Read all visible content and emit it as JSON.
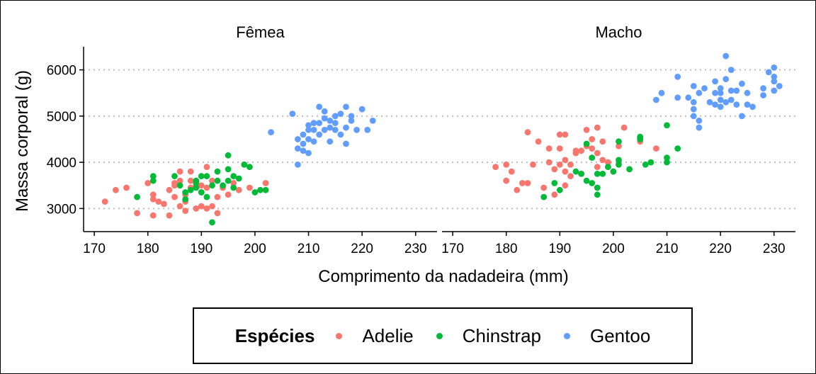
{
  "chart_data": {
    "type": "scatter",
    "xlabel": "Comprimento da nadadeira (mm)",
    "ylabel": "Massa corporal (g)",
    "xlim": [
      168,
      234
    ],
    "ylim": [
      2500,
      6500
    ],
    "xticks": [
      170,
      180,
      190,
      200,
      210,
      220,
      230
    ],
    "yticks": [
      3000,
      4000,
      5000,
      6000
    ],
    "grid": "horizontal dotted",
    "legend": {
      "title": "Espécies",
      "position": "bottom",
      "entries": [
        {
          "name": "Adelie",
          "color": "#F8766D"
        },
        {
          "name": "Chinstrap",
          "color": "#00BA38"
        },
        {
          "name": "Gentoo",
          "color": "#619CFF"
        }
      ]
    },
    "panels": [
      {
        "label": "Fêmea",
        "series": [
          {
            "name": "Adelie",
            "color": "#F8766D",
            "points": [
              [
                172,
                3150
              ],
              [
                174,
                3400
              ],
              [
                176,
                3450
              ],
              [
                178,
                2900
              ],
              [
                180,
                3550
              ],
              [
                181,
                2850
              ],
              [
                181,
                3300
              ],
              [
                181,
                3200
              ],
              [
                182,
                3150
              ],
              [
                183,
                3100
              ],
              [
                184,
                2850
              ],
              [
                184,
                3400
              ],
              [
                185,
                3250
              ],
              [
                185,
                3500
              ],
              [
                185,
                3550
              ],
              [
                186,
                3050
              ],
              [
                186,
                3600
              ],
              [
                186,
                3800
              ],
              [
                187,
                2950
              ],
              [
                187,
                3300
              ],
              [
                187,
                3150
              ],
              [
                188,
                3450
              ],
              [
                188,
                3600
              ],
              [
                188,
                3800
              ],
              [
                189,
                3000
              ],
              [
                189,
                3500
              ],
              [
                190,
                3050
              ],
              [
                190,
                3350
              ],
              [
                190,
                3500
              ],
              [
                191,
                3000
              ],
              [
                191,
                3450
              ],
              [
                191,
                3900
              ],
              [
                192,
                3050
              ],
              [
                192,
                3600
              ],
              [
                193,
                2900
              ],
              [
                193,
                3250
              ],
              [
                194,
                3450
              ],
              [
                195,
                3300
              ],
              [
                196,
                3550
              ],
              [
                197,
                3400
              ],
              [
                199,
                3450
              ],
              [
                202,
                3550
              ]
            ]
          },
          {
            "name": "Chinstrap",
            "color": "#00BA38",
            "points": [
              [
                178,
                3250
              ],
              [
                181,
                3700
              ],
              [
                181,
                3600
              ],
              [
                185,
                3700
              ],
              [
                186,
                3500
              ],
              [
                187,
                3350
              ],
              [
                187,
                3200
              ],
              [
                188,
                3400
              ],
              [
                189,
                3550
              ],
              [
                189,
                3600
              ],
              [
                189,
                3450
              ],
              [
                190,
                3700
              ],
              [
                190,
                3350
              ],
              [
                191,
                3700
              ],
              [
                191,
                3250
              ],
              [
                192,
                2700
              ],
              [
                192,
                3500
              ],
              [
                193,
                3800
              ],
              [
                193,
                3600
              ],
              [
                194,
                3500
              ],
              [
                195,
                3850
              ],
              [
                195,
                4150
              ],
              [
                195,
                3600
              ],
              [
                196,
                3700
              ],
              [
                196,
                3450
              ],
              [
                197,
                3650
              ],
              [
                198,
                3950
              ],
              [
                199,
                3900
              ],
              [
                200,
                3350
              ],
              [
                201,
                3400
              ],
              [
                202,
                3400
              ]
            ]
          },
          {
            "name": "Gentoo",
            "color": "#619CFF",
            "points": [
              [
                203,
                4650
              ],
              [
                207,
                5050
              ],
              [
                208,
                4500
              ],
              [
                208,
                4300
              ],
              [
                208,
                3950
              ],
              [
                209,
                4600
              ],
              [
                209,
                4250
              ],
              [
                209,
                4400
              ],
              [
                210,
                4700
              ],
              [
                210,
                4800
              ],
              [
                210,
                4500
              ],
              [
                210,
                4200
              ],
              [
                211,
                4850
              ],
              [
                211,
                4700
              ],
              [
                211,
                4450
              ],
              [
                212,
                5200
              ],
              [
                212,
                4600
              ],
              [
                212,
                4850
              ],
              [
                213,
                4700
              ],
              [
                213,
                4950
              ],
              [
                213,
                5100
              ],
              [
                214,
                4750
              ],
              [
                214,
                4900
              ],
              [
                214,
                4450
              ],
              [
                215,
                5000
              ],
              [
                215,
                4850
              ],
              [
                215,
                4700
              ],
              [
                216,
                4600
              ],
              [
                216,
                5050
              ],
              [
                217,
                4400
              ],
              [
                217,
                4750
              ],
              [
                217,
                5200
              ],
              [
                218,
                4900
              ],
              [
                218,
                5000
              ],
              [
                219,
                4700
              ],
              [
                220,
                5150
              ],
              [
                221,
                4700
              ],
              [
                222,
                4900
              ]
            ]
          }
        ]
      },
      {
        "label": "Macho",
        "series": [
          {
            "name": "Adelie",
            "color": "#F8766D",
            "points": [
              [
                178,
                3900
              ],
              [
                180,
                3950
              ],
              [
                180,
                3600
              ],
              [
                181,
                3800
              ],
              [
                182,
                3400
              ],
              [
                183,
                3550
              ],
              [
                184,
                3550
              ],
              [
                184,
                4650
              ],
              [
                185,
                3950
              ],
              [
                186,
                4450
              ],
              [
                187,
                3450
              ],
              [
                188,
                4000
              ],
              [
                188,
                4300
              ],
              [
                189,
                3300
              ],
              [
                189,
                3850
              ],
              [
                190,
                3950
              ],
              [
                190,
                4300
              ],
              [
                190,
                4600
              ],
              [
                191,
                3500
              ],
              [
                191,
                3800
              ],
              [
                191,
                4050
              ],
              [
                191,
                4600
              ],
              [
                192,
                3950
              ],
              [
                192,
                3700
              ],
              [
                193,
                4250
              ],
              [
                193,
                4200
              ],
              [
                194,
                3750
              ],
              [
                194,
                4250
              ],
              [
                195,
                4700
              ],
              [
                195,
                4350
              ],
              [
                196,
                4300
              ],
              [
                196,
                4500
              ],
              [
                197,
                4750
              ],
              [
                197,
                3900
              ],
              [
                197,
                4200
              ],
              [
                198,
                4450
              ],
              [
                198,
                4050
              ],
              [
                199,
                4000
              ],
              [
                200,
                3800
              ],
              [
                201,
                4350
              ],
              [
                202,
                4750
              ],
              [
                205,
                4450
              ],
              [
                208,
                4300
              ]
            ]
          },
          {
            "name": "Chinstrap",
            "color": "#00BA38",
            "points": [
              [
                187,
                3250
              ],
              [
                189,
                3550
              ],
              [
                190,
                3400
              ],
              [
                193,
                3800
              ],
              [
                194,
                3750
              ],
              [
                195,
                3600
              ],
              [
                195,
                4400
              ],
              [
                196,
                3550
              ],
              [
                196,
                4100
              ],
              [
                197,
                3300
              ],
              [
                197,
                3450
              ],
              [
                197,
                3750
              ],
              [
                198,
                3750
              ],
              [
                199,
                3900
              ],
              [
                200,
                3800
              ],
              [
                201,
                4450
              ],
              [
                201,
                4050
              ],
              [
                201,
                3950
              ],
              [
                203,
                3850
              ],
              [
                205,
                4500
              ],
              [
                205,
                4550
              ],
              [
                206,
                3950
              ],
              [
                207,
                4000
              ],
              [
                210,
                4000
              ],
              [
                210,
                4100
              ],
              [
                210,
                4800
              ],
              [
                212,
                4300
              ]
            ]
          },
          {
            "name": "Gentoo",
            "color": "#619CFF",
            "points": [
              [
                208,
                5350
              ],
              [
                209,
                5500
              ],
              [
                212,
                5400
              ],
              [
                212,
                5850
              ],
              [
                214,
                5400
              ],
              [
                215,
                5000
              ],
              [
                215,
                5150
              ],
              [
                215,
                5300
              ],
              [
                215,
                5650
              ],
              [
                216,
                5500
              ],
              [
                216,
                4750
              ],
              [
                216,
                4900
              ],
              [
                217,
                5600
              ],
              [
                218,
                5300
              ],
              [
                219,
                5250
              ],
              [
                219,
                5500
              ],
              [
                219,
                5750
              ],
              [
                220,
                5200
              ],
              [
                220,
                5350
              ],
              [
                220,
                5500
              ],
              [
                220,
                5600
              ],
              [
                221,
                6300
              ],
              [
                221,
                5800
              ],
              [
                221,
                5300
              ],
              [
                222,
                5350
              ],
              [
                222,
                5550
              ],
              [
                222,
                6000
              ],
              [
                223,
                5550
              ],
              [
                223,
                5250
              ],
              [
                224,
                5700
              ],
              [
                224,
                5000
              ],
              [
                225,
                5250
              ],
              [
                225,
                5500
              ],
              [
                226,
                5200
              ],
              [
                228,
                5450
              ],
              [
                228,
                5600
              ],
              [
                229,
                5950
              ],
              [
                230,
                5550
              ],
              [
                230,
                5750
              ],
              [
                230,
                6050
              ],
              [
                231,
                5650
              ],
              [
                230,
                5850
              ]
            ]
          }
        ]
      }
    ]
  }
}
